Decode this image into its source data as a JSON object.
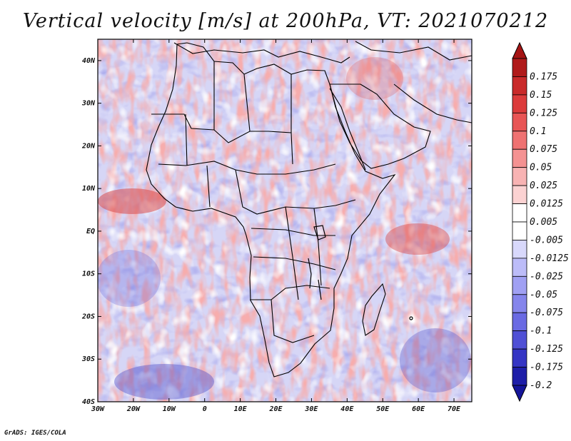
{
  "title": "Vertical velocity [m/s] at 200hPa, VT: 2021070212",
  "credit": "GrADS: IGES/COLA",
  "map": {
    "lat_range": [
      -40,
      45
    ],
    "lon_range": [
      -30,
      75
    ],
    "lat_ticks": [
      {
        "value": 40,
        "label": "40N"
      },
      {
        "value": 30,
        "label": "30N"
      },
      {
        "value": 20,
        "label": "20N"
      },
      {
        "value": 10,
        "label": "10N"
      },
      {
        "value": 0,
        "label": "EQ"
      },
      {
        "value": -10,
        "label": "10S"
      },
      {
        "value": -20,
        "label": "20S"
      },
      {
        "value": -30,
        "label": "30S"
      },
      {
        "value": -40,
        "label": "40S"
      }
    ],
    "lon_ticks": [
      {
        "value": -30,
        "label": "30W"
      },
      {
        "value": -20,
        "label": "20W"
      },
      {
        "value": -10,
        "label": "10W"
      },
      {
        "value": 0,
        "label": "0"
      },
      {
        "value": 10,
        "label": "10E"
      },
      {
        "value": 20,
        "label": "20E"
      },
      {
        "value": 30,
        "label": "30E"
      },
      {
        "value": 40,
        "label": "40E"
      },
      {
        "value": 50,
        "label": "50E"
      },
      {
        "value": 60,
        "label": "60E"
      },
      {
        "value": 70,
        "label": "70E"
      }
    ]
  },
  "colorbar": {
    "bins": [
      {
        "label": "0.175",
        "color": "#b01a1a"
      },
      {
        "label": "0.15",
        "color": "#c92a2a"
      },
      {
        "label": "0.125",
        "color": "#dc3b3b"
      },
      {
        "label": "0.1",
        "color": "#e85555"
      },
      {
        "label": "0.075",
        "color": "#ef7272"
      },
      {
        "label": "0.05",
        "color": "#f49292"
      },
      {
        "label": "0.025",
        "color": "#f8b3b3"
      },
      {
        "label": "0.0125",
        "color": "#fbd2d2"
      },
      {
        "label": "0.005",
        "color": "#ffffff"
      },
      {
        "label": "-0.005",
        "color": "#ffffff"
      },
      {
        "label": "-0.0125",
        "color": "#d8d8fb"
      },
      {
        "label": "-0.025",
        "color": "#bcbcf8"
      },
      {
        "label": "-0.05",
        "color": "#a0a0f3"
      },
      {
        "label": "-0.075",
        "color": "#8585ec"
      },
      {
        "label": "-0.1",
        "color": "#6a6ae3"
      },
      {
        "label": "-0.125",
        "color": "#5050d6"
      },
      {
        "label": "-0.175",
        "color": "#3535c4"
      },
      {
        "label": "-0.2",
        "color": "#1e1ea8"
      }
    ],
    "top_tip_color": "#a51414",
    "bottom_tip_color": "#15159a"
  },
  "palette": {
    "background_field": "#d6d6f6",
    "outline": "#000000"
  }
}
